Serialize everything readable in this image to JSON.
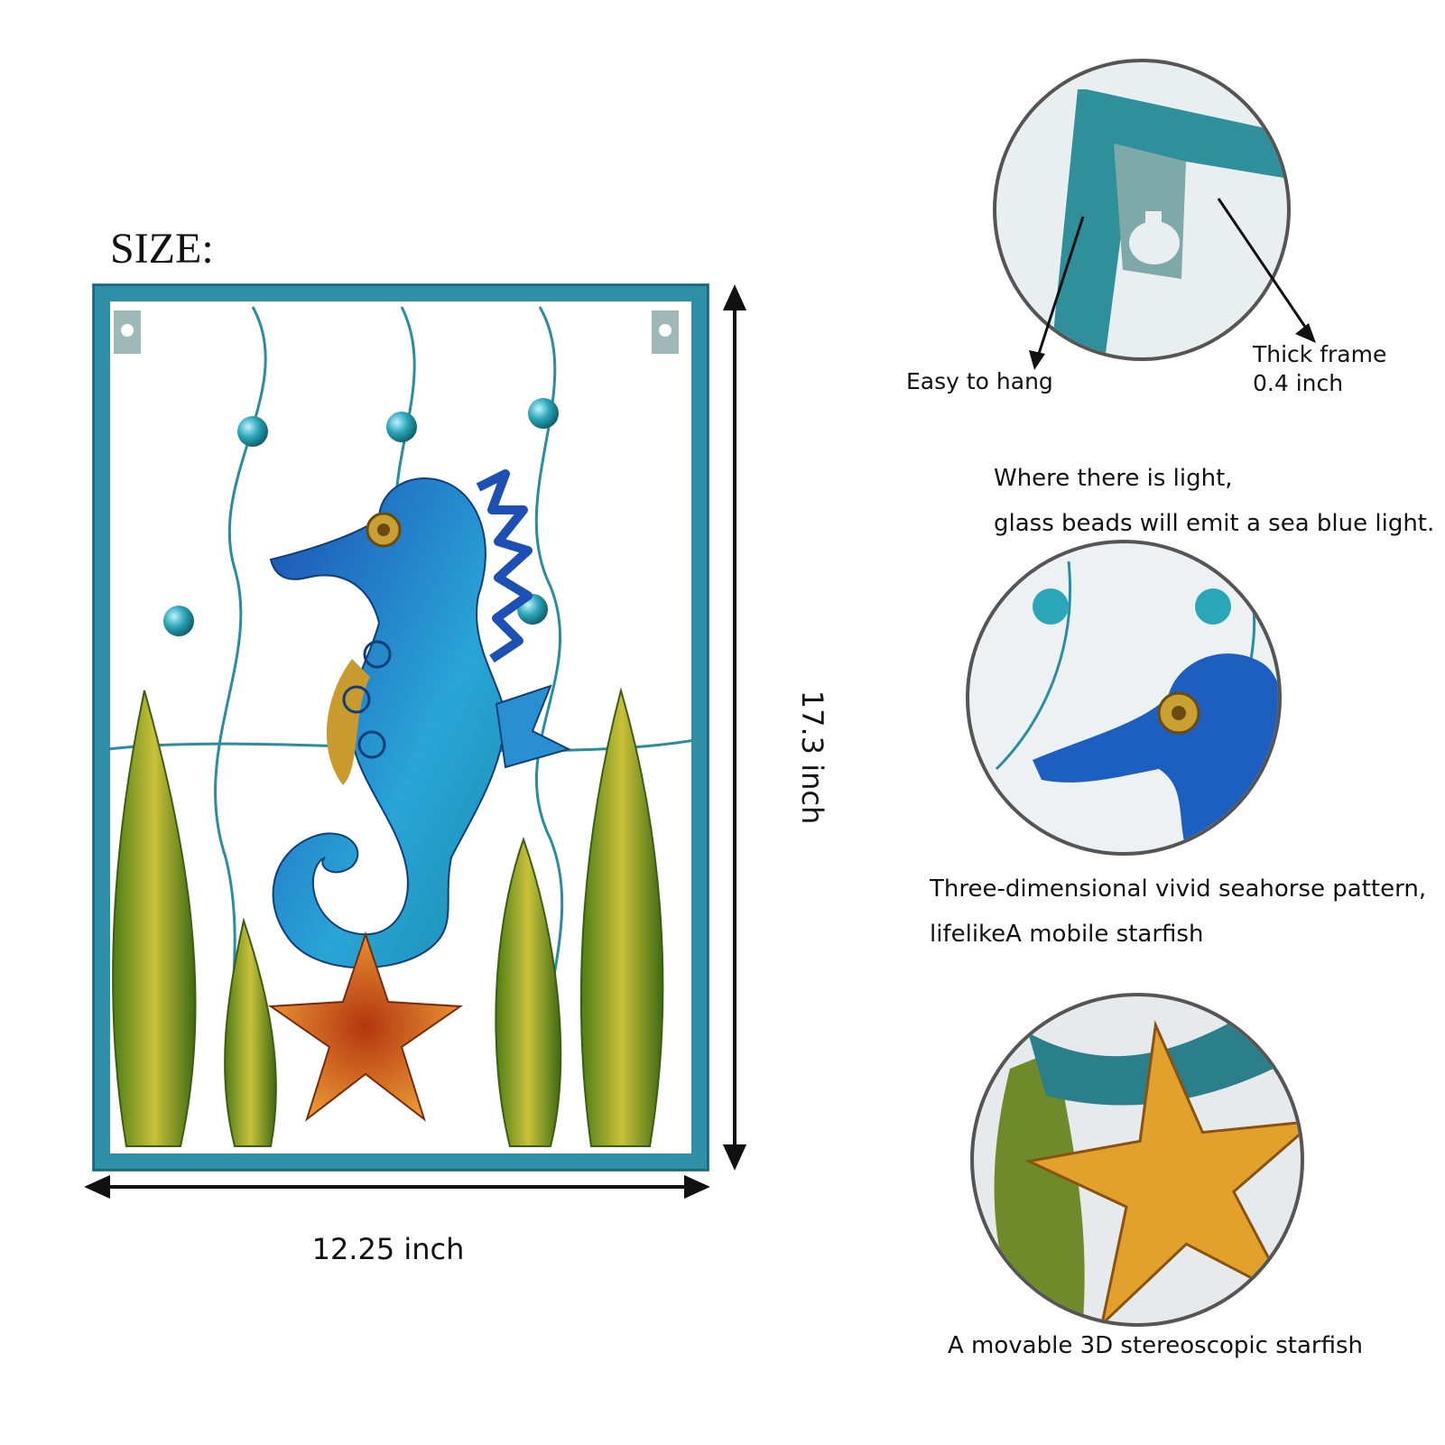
{
  "size_title": "SIZE:",
  "dimensions": {
    "width_label": "12.25 inch",
    "height_label": "17.3 inch"
  },
  "callouts": {
    "hang": "Easy to hang",
    "frame_line1": "Thick frame",
    "frame_line2": "0.4 inch",
    "light_line1": "Where there is light,",
    "light_line2": "glass beads will emit a sea blue light.",
    "seahorse_line1": "Three-dimensional vivid seahorse pattern,",
    "seahorse_line2": "lifelikeA mobile starfish",
    "starfish": "A movable 3D stereoscopic starfish"
  },
  "colors": {
    "frame": "#2f8fa6",
    "seahorse": "#1f6fc4",
    "leaf": "#6f9a1f",
    "starfish": "#e07a1c",
    "bead": "#2aa6b8"
  }
}
